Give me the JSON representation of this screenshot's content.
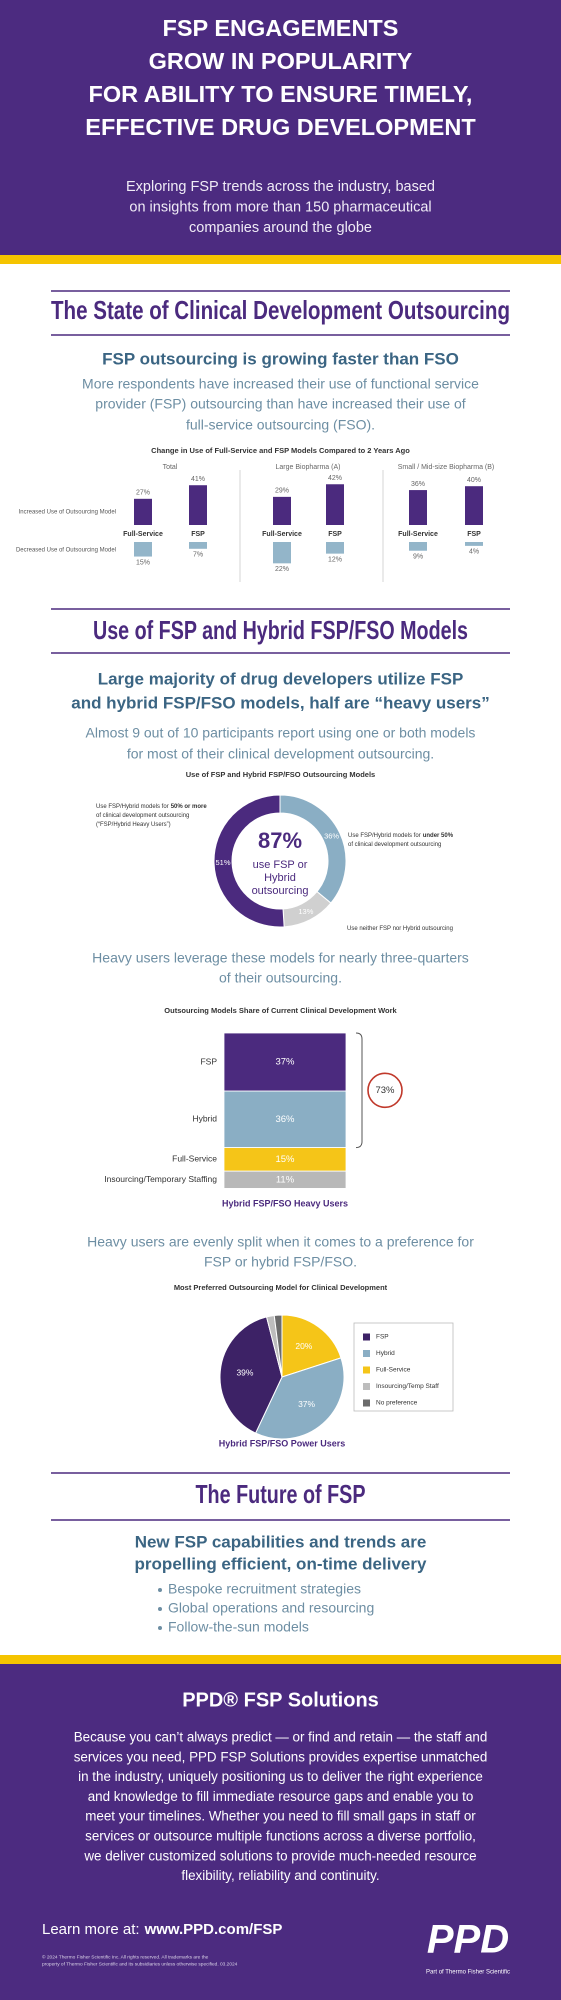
{
  "header": {
    "title_lines": [
      "FSP ENGAGEMENTS",
      "GROW IN POPULARITY",
      "FOR ABILITY TO ENSURE TIMELY,",
      "EFFECTIVE DRUG DEVELOPMENT"
    ],
    "subtitle_lines": [
      "Exploring FSP trends across the industry, based",
      "on insights from more than 150 pharmaceutical",
      "companies around the globe"
    ]
  },
  "sections": [
    {
      "heading": "The State of Clinical Development Outsourcing",
      "subheading_lines": [
        "FSP outsourcing is growing faster than FSO"
      ],
      "paragraph_lines": [
        "More respondents have increased their use of functional service",
        "provider (FSP) outsourcing than have increased their use of",
        "full-service outsourcing (FSO)."
      ]
    },
    {
      "heading": "Use of FSP and Hybrid FSP/FSO Models",
      "subheading_lines": [
        "Large majority of drug developers utilize FSP",
        "and hybrid FSP/FSO models, half are “heavy users”"
      ],
      "paragraph_lines": [
        "Almost 9 out of 10 participants report using one or both models",
        "for most of their clinical development outsourcing."
      ],
      "notes": [
        [
          "Heavy users leverage these models for nearly three-quarters",
          "of their outsourcing."
        ],
        [
          "Heavy users are evenly split when it comes to a preference for",
          "FSP or hybrid FSP/FSO."
        ]
      ]
    },
    {
      "heading": "The Future of FSP",
      "subheading_lines": [
        "New FSP capabilities and trends are",
        "propelling efficient, on-time delivery"
      ],
      "bullets": [
        "Bespoke recruitment strategies",
        "Global operations and resourcing",
        "Follow-the-sun models"
      ]
    }
  ],
  "chart_data": [
    {
      "type": "bar",
      "title": "Change in Use of Full-Service and FSP Models Compared to 2 Years Ago",
      "row_labels": [
        "Increased Use of Outsourcing Model",
        "Decreased Use of Outsourcing Model"
      ],
      "colors": [
        "#4b2a7e",
        "#93b5c9"
      ],
      "panels": [
        {
          "title": "Total",
          "categories": [
            "Full-Service",
            "FSP"
          ],
          "series": [
            {
              "values": [
                27,
                41
              ],
              "value_labels": [
                "27%",
                "41%"
              ]
            },
            {
              "values": [
                15,
                7
              ],
              "value_labels": [
                "15%",
                "7%"
              ]
            }
          ]
        },
        {
          "title": "Large Biopharma (A)",
          "categories": [
            "Full-Service",
            "FSP"
          ],
          "series": [
            {
              "values": [
                29,
                42
              ],
              "value_labels": [
                "29%",
                "42%"
              ]
            },
            {
              "values": [
                22,
                12
              ],
              "value_labels": [
                "22%",
                "12%"
              ]
            }
          ]
        },
        {
          "title": "Small / Mid-size Biopharma (B)",
          "categories": [
            "Full-Service",
            "FSP"
          ],
          "series": [
            {
              "values": [
                36,
                40
              ],
              "value_labels": [
                "36%",
                "40%"
              ]
            },
            {
              "values": [
                9,
                4
              ],
              "value_labels": [
                "9%",
                "4%"
              ]
            }
          ]
        }
      ]
    },
    {
      "type": "donut",
      "title": "Use of FSP and Hybrid FSP/FSO Outsourcing Models",
      "values": [
        51,
        36,
        13
      ],
      "value_labels": [
        "51%",
        "36%",
        "13%"
      ],
      "colors": [
        "#4b2a7e",
        "#8aaec4",
        "#d0d0d0"
      ],
      "center_label": "87%",
      "center_lines": [
        "use FSP or",
        "Hybrid",
        "outsourcing"
      ],
      "annotations": [
        {
          "before": "Use FSP/Hybrid models for",
          "bold": "50% or more",
          "after_lines": [
            "of clinical development outsourcing",
            "(“FSP/Hybrid Heavy Users”)"
          ]
        },
        {
          "before": "Use FSP/Hybrid models for",
          "bold": "under 50%",
          "after_lines": [
            "of clinical development outsourcing"
          ]
        },
        {
          "before": "Use neither FSP nor Hybrid outsourcing"
        }
      ]
    },
    {
      "type": "stacked-bar",
      "title": "Outsourcing Models Share of Current Clinical Development Work",
      "categories": [
        "FSP",
        "Hybrid",
        "Full-Service",
        "Insourcing/Temporary Staffing"
      ],
      "values": [
        37,
        36,
        15,
        11
      ],
      "value_labels": [
        "37%",
        "36%",
        "15%",
        "11%"
      ],
      "colors": [
        "#4b2a7e",
        "#8aaec4",
        "#f5c518",
        "#b8b8b8"
      ],
      "annotation": "73%",
      "caption": "Hybrid FSP/FSO Heavy Users"
    },
    {
      "type": "pie",
      "title": "Most Preferred Outsourcing Model for Clinical Development",
      "categories": [
        "FSP",
        "Hybrid",
        "Full-Service",
        "Insourcing/Temp Staff",
        "No preference"
      ],
      "values": [
        39,
        37,
        20,
        2,
        2
      ],
      "value_labels": [
        "39%",
        "37%",
        "20%",
        null,
        null
      ],
      "colors": [
        "#3d2266",
        "#8aaec4",
        "#f5c518",
        "#bdbdbd",
        "#6b6b6b"
      ],
      "caption": "Hybrid FSP/FSO Power Users"
    }
  ],
  "footer": {
    "title": "PPD® FSP Solutions",
    "paragraph_lines": [
      "Because you can’t always predict — or find and retain — the staff and",
      "services you need, PPD FSP Solutions provides expertise unmatched",
      "in the industry, uniquely positioning us to deliver the right experience",
      "and knowledge to fill immediate resource gaps and enable you to",
      "meet your timelines. Whether you need to fill small gaps in staff or",
      "services or outsource multiple functions across a diverse portfolio,",
      "we deliver customized solutions to provide much-needed resource",
      "flexibility, reliability and continuity."
    ],
    "learn_more": "Learn more at:",
    "url": "www.PPD.com/FSP",
    "fine_print_lines": [
      "© 2024 Thermo Fisher Scientific Inc. All rights reserved. All trademarks are the",
      "property of Thermo Fisher Scientific and its subsidiaries unless otherwise specified. 03.2024"
    ],
    "logo": "PPD",
    "logo_tagline": "Part of Thermo Fisher Scientific"
  }
}
